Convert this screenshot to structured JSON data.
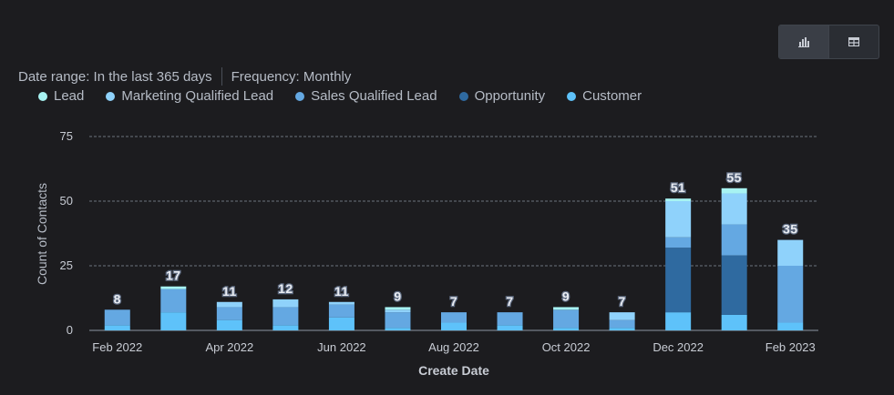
{
  "controls": {
    "chart_view_icon": "bar-chart-icon",
    "table_view_icon": "table-icon"
  },
  "filters": {
    "date_range": "Date range: In the last 365 days",
    "frequency": "Frequency: Monthly"
  },
  "colors": {
    "Lead": "#a7f3f2",
    "Marketing Qualified Lead": "#8fd2fb",
    "Sales Qualified Lead": "#64a8e2",
    "Opportunity": "#2f6aa0",
    "Customer": "#5ec2fa"
  },
  "chart_data": {
    "type": "bar",
    "stacked": true,
    "xlabel": "Create Date",
    "ylabel": "Count of Contacts",
    "ylim": [
      0,
      75
    ],
    "yticks": [
      0,
      25,
      50,
      75
    ],
    "grid": true,
    "legend_position": "top-left",
    "categories": [
      "Feb 2022",
      "Mar 2022",
      "Apr 2022",
      "May 2022",
      "Jun 2022",
      "Jul 2022",
      "Aug 2022",
      "Sep 2022",
      "Oct 2022",
      "Nov 2022",
      "Dec 2022",
      "Jan 2023",
      "Feb 2023"
    ],
    "x_tick_labels": [
      "Feb 2022",
      "Apr 2022",
      "Jun 2022",
      "Aug 2022",
      "Oct 2022",
      "Dec 2022",
      "Feb 2023"
    ],
    "totals": [
      8,
      17,
      11,
      12,
      11,
      9,
      7,
      7,
      9,
      7,
      51,
      55,
      35
    ],
    "series": [
      {
        "name": "Customer",
        "values": [
          2,
          7,
          4,
          2,
          5,
          1,
          3,
          2,
          1,
          1,
          7,
          6,
          3
        ]
      },
      {
        "name": "Opportunity",
        "values": [
          0,
          0,
          0,
          0,
          0,
          0,
          0,
          0,
          0,
          0,
          25,
          23,
          0
        ]
      },
      {
        "name": "Sales Qualified Lead",
        "values": [
          6,
          9,
          5,
          7,
          5,
          6,
          4,
          5,
          7,
          3,
          4,
          12,
          22
        ]
      },
      {
        "name": "Marketing Qualified Lead",
        "values": [
          0,
          0,
          2,
          3,
          1,
          1,
          0,
          0,
          0,
          3,
          14,
          12,
          10
        ]
      },
      {
        "name": "Lead",
        "values": [
          0,
          1,
          0,
          0,
          0,
          1,
          0,
          0,
          1,
          0,
          1,
          2,
          0
        ]
      }
    ],
    "legend_order": [
      "Lead",
      "Marketing Qualified Lead",
      "Sales Qualified Lead",
      "Opportunity",
      "Customer"
    ]
  }
}
